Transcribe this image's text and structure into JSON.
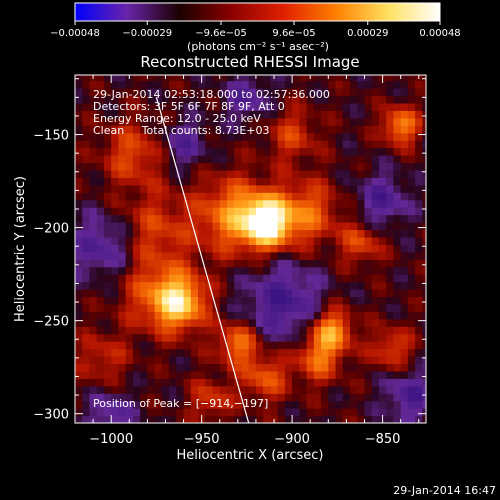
{
  "chart_data": {
    "type": "heatmap",
    "title": "Reconstructed RHESSI Image",
    "xlabel": "Heliocentric X (arcsec)",
    "ylabel": "Heliocentric Y (arcsec)",
    "xlim": [
      -1020,
      -826
    ],
    "ylim": [
      -305,
      -118
    ],
    "x_ticks": [
      -1000,
      -950,
      -900,
      -850
    ],
    "y_ticks": [
      -300,
      -250,
      -200,
      -150
    ],
    "x_tick_labels": [
      "−1000",
      "−950",
      "−900",
      "−850"
    ],
    "y_tick_labels": [
      "−300",
      "−250",
      "−200",
      "−150"
    ],
    "colorbar": {
      "min": -0.00048,
      "max": 0.00048,
      "ticks": [
        -0.00048,
        -0.00029,
        -9.6e-05,
        9.6e-05,
        0.00029,
        0.00048
      ],
      "tick_labels": [
        "−0.00048",
        "−0.00029",
        "−9.6e−05",
        "9.6e−05",
        "0.00029",
        "0.00048"
      ],
      "unit_label": "(photons cm⁻² s⁻¹ asec⁻²)",
      "colors": [
        "#0000ff",
        "#6a24a8",
        "#1a0000",
        "#8a0000",
        "#e02000",
        "#ff8000",
        "#ffe060",
        "#ffffff"
      ]
    },
    "annotations": [
      "29-Jan-2014 02:53:18.000 to 02:57:36.000",
      "Detectors: 3F 5F 6F 7F 8F 9F, Att 0",
      "Energy Range: 12.0 - 25.0 keV",
      "Clean     Total counts: 8.73E+03"
    ],
    "peak": {
      "label": "Position of Peak = [−914,−197]",
      "x": -914,
      "y": -197
    },
    "limb_line": {
      "points": [
        [
          -975,
          -130
        ],
        [
          -924,
          -305
        ]
      ]
    },
    "sources": [
      {
        "x": -914,
        "y": -197,
        "sigma": 9,
        "amp": 1.0
      },
      {
        "x": -932,
        "y": -193,
        "sigma": 14,
        "amp": 0.55
      },
      {
        "x": -892,
        "y": -192,
        "sigma": 12,
        "amp": 0.45
      },
      {
        "x": -962,
        "y": -240,
        "sigma": 10,
        "amp": 0.7
      },
      {
        "x": -975,
        "y": -235,
        "sigma": 14,
        "amp": 0.35
      },
      {
        "x": -878,
        "y": -255,
        "sigma": 8,
        "amp": 0.6
      },
      {
        "x": -886,
        "y": -270,
        "sigma": 9,
        "amp": 0.45
      },
      {
        "x": -930,
        "y": -262,
        "sigma": 8,
        "amp": 0.5
      },
      {
        "x": -915,
        "y": -280,
        "sigma": 9,
        "amp": 0.4
      },
      {
        "x": -840,
        "y": -145,
        "sigma": 7,
        "amp": 0.55
      },
      {
        "x": -988,
        "y": -160,
        "sigma": 12,
        "amp": 0.35
      },
      {
        "x": -975,
        "y": -200,
        "sigma": 14,
        "amp": 0.3
      },
      {
        "x": -862,
        "y": -208,
        "sigma": 8,
        "amp": 0.35
      },
      {
        "x": -845,
        "y": -265,
        "sigma": 8,
        "amp": 0.35
      },
      {
        "x": -1005,
        "y": -270,
        "sigma": 10,
        "amp": 0.25
      },
      {
        "x": -945,
        "y": -292,
        "sigma": 8,
        "amp": 0.3
      },
      {
        "x": -900,
        "y": -150,
        "sigma": 10,
        "amp": 0.3
      }
    ],
    "negative_regions": [
      {
        "x": -905,
        "y": -240,
        "sigma": 15,
        "amp": 0.4
      },
      {
        "x": -1005,
        "y": -210,
        "sigma": 12,
        "amp": 0.35
      },
      {
        "x": -850,
        "y": -185,
        "sigma": 10,
        "amp": 0.35
      },
      {
        "x": -835,
        "y": -290,
        "sigma": 10,
        "amp": 0.35
      },
      {
        "x": -960,
        "y": -155,
        "sigma": 9,
        "amp": 0.3
      },
      {
        "x": -1000,
        "y": -300,
        "sigma": 9,
        "amp": 0.3
      },
      {
        "x": -925,
        "y": -130,
        "sigma": 9,
        "amp": 0.3
      }
    ]
  },
  "footer": {
    "timestamp": "29-Jan-2014 16:47"
  }
}
